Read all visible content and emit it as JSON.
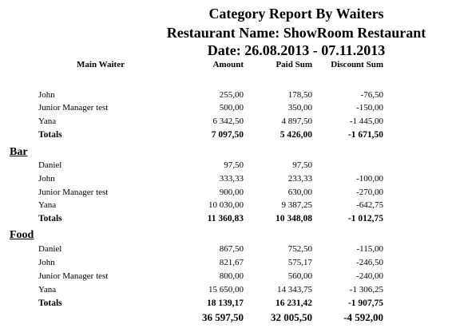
{
  "report": {
    "title": "Category Report By Waiters",
    "restaurant": "Restaurant Name: ShowRoom Restaurant",
    "date": "Date: 26.08.2013 - 07.11.2013"
  },
  "headers": {
    "main_waiter": "Main Waiter",
    "amount": "Amount",
    "paid_sum": "Paid Sum",
    "discount_sum": "Discount Sum"
  },
  "groups": [
    {
      "name": "",
      "rows": [
        {
          "waiter": "John",
          "amount": "255,00",
          "paid": "178,50",
          "discount": "-76,50"
        },
        {
          "waiter": "Junior Manager test",
          "amount": "500,00",
          "paid": "350,00",
          "discount": "-150,00"
        },
        {
          "waiter": "Yana",
          "amount": "6 342,50",
          "paid": "4 897,50",
          "discount": "-1 445,00"
        }
      ],
      "totals": {
        "label": "Totals",
        "amount": "7 097,50",
        "paid": "5 426,00",
        "discount": "-1 671,50"
      }
    },
    {
      "name": "Bar",
      "rows": [
        {
          "waiter": "Daniel",
          "amount": "97,50",
          "paid": "97,50",
          "discount": ""
        },
        {
          "waiter": "John",
          "amount": "333,33",
          "paid": "233,33",
          "discount": "-100,00"
        },
        {
          "waiter": "Junior Manager test",
          "amount": "900,00",
          "paid": "630,00",
          "discount": "-270,00"
        },
        {
          "waiter": "Yana",
          "amount": "10 030,00",
          "paid": "9 387,25",
          "discount": "-642,75"
        }
      ],
      "totals": {
        "label": "Totals",
        "amount": "11 360,83",
        "paid": "10 348,08",
        "discount": "-1 012,75"
      }
    },
    {
      "name": "Food",
      "rows": [
        {
          "waiter": "Daniel",
          "amount": "867,50",
          "paid": "752,50",
          "discount": "-115,00"
        },
        {
          "waiter": "John",
          "amount": "821,67",
          "paid": "575,17",
          "discount": "-246,50"
        },
        {
          "waiter": "Junior Manager test",
          "amount": "800,00",
          "paid": "560,00",
          "discount": "-240,00"
        },
        {
          "waiter": "Yana",
          "amount": "15 650,00",
          "paid": "14 343,75",
          "discount": "-1 306,25"
        }
      ],
      "totals": {
        "label": "Totals",
        "amount": "18 139,17",
        "paid": "16 231,42",
        "discount": "-1 907,75"
      }
    }
  ],
  "grand_total": {
    "amount": "36 597,50",
    "paid": "32 005,50",
    "discount": "-4 592,00"
  }
}
